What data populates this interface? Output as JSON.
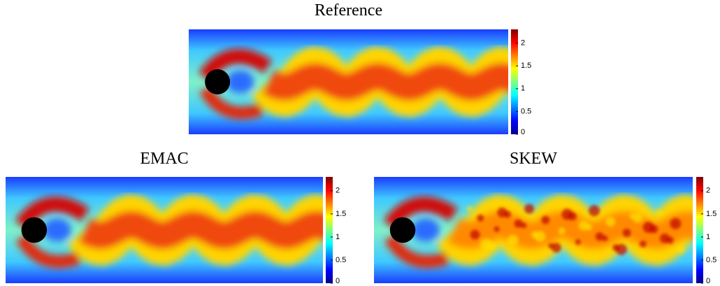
{
  "chart_data": [
    {
      "type": "heatmap",
      "title": "Reference",
      "clim": [
        0,
        2.3
      ],
      "cticks": [
        0,
        0.5,
        1,
        1.5,
        2
      ]
    },
    {
      "type": "heatmap",
      "title": "EMAC",
      "clim": [
        0,
        2.3
      ],
      "cticks": [
        0,
        0.5,
        1,
        1.5,
        2
      ]
    },
    {
      "type": "heatmap",
      "title": "SKEW",
      "clim": [
        0,
        2.3
      ],
      "cticks": [
        0,
        0.5,
        1,
        1.5,
        2
      ]
    }
  ]
}
